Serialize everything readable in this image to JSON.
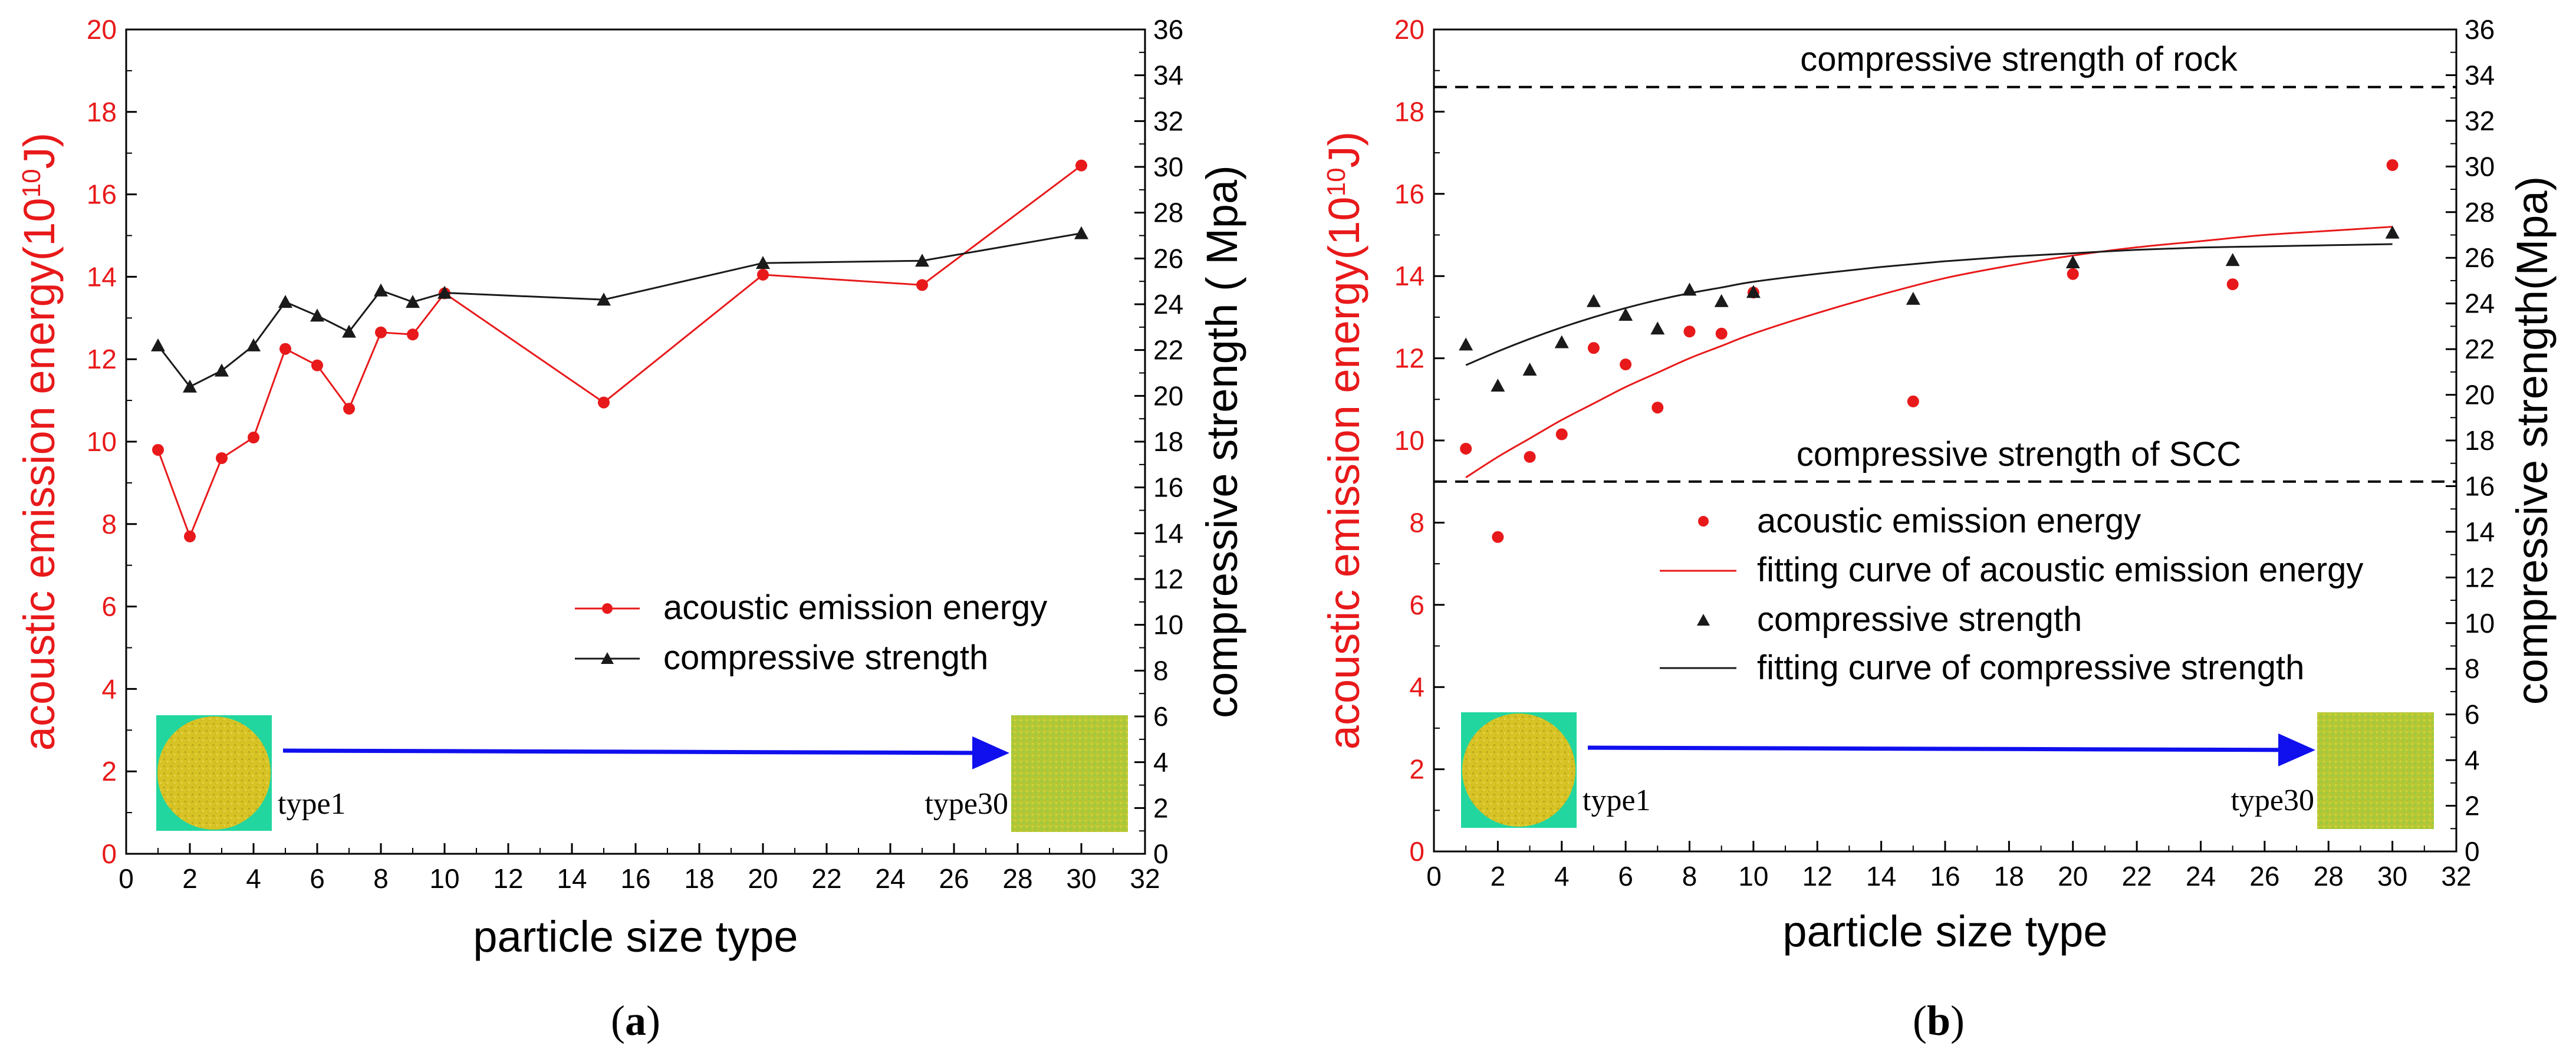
{
  "colors": {
    "energy": "#e8191a",
    "strength": "#1a1a1a",
    "arrow": "#1010ee",
    "tile_bg": "#22d6a0",
    "grain": "#d7c324",
    "fine": "#b4c836"
  },
  "panels": [
    {
      "caption_letter": "a",
      "image_labels": {
        "start": "type1",
        "end": "type30"
      },
      "legend": {
        "energy": "acoustic emission energy",
        "strength": "compressive strength"
      },
      "notes": []
    },
    {
      "caption_letter": "b",
      "image_labels": {
        "start": "type1",
        "end": "type30"
      },
      "legend": {
        "energy": "acoustic emission energy",
        "energy_fit": "fitting curve of acoustic emission energy",
        "strength": "compressive strength",
        "strength_fit": "fitting curve of compressive strength"
      },
      "notes": [
        "compressive strength of rock",
        "compressive strength of SCC"
      ]
    }
  ],
  "chart_data": [
    {
      "type": "line",
      "xlabel": "particle size type",
      "ylabel": "acoustic emission energy(10^10 J)",
      "y2label": "compressive strength ( Mpa)",
      "xlim": [
        0,
        32
      ],
      "ylim": [
        0,
        20
      ],
      "y2lim": [
        0,
        36
      ],
      "xticks": [
        0,
        2,
        4,
        6,
        8,
        10,
        12,
        14,
        16,
        18,
        20,
        22,
        24,
        26,
        28,
        30,
        32
      ],
      "yticks": [
        0,
        2,
        4,
        6,
        8,
        10,
        12,
        14,
        16,
        18,
        20
      ],
      "y2ticks": [
        0,
        2,
        4,
        6,
        8,
        10,
        12,
        14,
        16,
        18,
        20,
        22,
        24,
        26,
        28,
        30,
        32,
        34,
        36
      ],
      "series": [
        {
          "name": "acoustic emission energy",
          "axis": "left",
          "marker": "circle",
          "x": [
            1,
            2,
            3,
            4,
            5,
            6,
            7,
            8,
            9,
            10,
            15,
            20,
            25,
            30
          ],
          "values": [
            9.8,
            7.7,
            9.6,
            10.1,
            12.25,
            11.85,
            10.8,
            12.65,
            12.6,
            13.6,
            10.95,
            14.05,
            13.8,
            16.7
          ]
        },
        {
          "name": "compressive strength",
          "axis": "right",
          "marker": "triangle",
          "x": [
            1,
            2,
            3,
            4,
            5,
            6,
            7,
            8,
            9,
            10,
            15,
            20,
            25,
            30
          ],
          "values": [
            22.2,
            20.4,
            21.1,
            22.2,
            24.1,
            23.5,
            22.8,
            24.6,
            24.1,
            24.5,
            24.2,
            25.8,
            25.9,
            27.1
          ]
        }
      ]
    },
    {
      "type": "scatter",
      "xlabel": "particle size type",
      "ylabel": "acoustic emission energy(10^10 J)",
      "y2label": "compressive strength(Mpa)",
      "xlim": [
        0,
        32
      ],
      "ylim": [
        0,
        20
      ],
      "y2lim": [
        0,
        36
      ],
      "xticks": [
        0,
        2,
        4,
        6,
        8,
        10,
        12,
        14,
        16,
        18,
        20,
        22,
        24,
        26,
        28,
        30,
        32
      ],
      "yticks": [
        0,
        2,
        4,
        6,
        8,
        10,
        12,
        14,
        16,
        18,
        20
      ],
      "y2ticks": [
        0,
        2,
        4,
        6,
        8,
        10,
        12,
        14,
        16,
        18,
        20,
        22,
        24,
        26,
        28,
        30,
        32,
        34,
        36
      ],
      "series": [
        {
          "name": "acoustic emission energy",
          "axis": "left",
          "marker": "circle",
          "x": [
            1,
            2,
            3,
            4,
            5,
            6,
            7,
            8,
            9,
            10,
            15,
            20,
            25,
            30
          ],
          "values": [
            9.8,
            7.65,
            9.6,
            10.15,
            12.25,
            11.85,
            10.8,
            12.65,
            12.6,
            13.6,
            10.95,
            14.05,
            13.8,
            16.7
          ]
        },
        {
          "name": "fitting curve of acoustic emission energy",
          "axis": "left",
          "marker": "none",
          "x": [
            1,
            2,
            3,
            4,
            5,
            6,
            7,
            8,
            9,
            10,
            12,
            14,
            16,
            18,
            20,
            22,
            24,
            26,
            28,
            30
          ],
          "values": [
            9.1,
            9.6,
            10.05,
            10.5,
            10.9,
            11.3,
            11.65,
            12.0,
            12.3,
            12.6,
            13.1,
            13.55,
            13.95,
            14.25,
            14.5,
            14.7,
            14.85,
            15.0,
            15.1,
            15.2
          ]
        },
        {
          "name": "compressive strength",
          "axis": "right",
          "marker": "triangle",
          "x": [
            1,
            2,
            3,
            4,
            5,
            6,
            7,
            8,
            9,
            10,
            15,
            20,
            25,
            30
          ],
          "values": [
            22.2,
            20.4,
            21.1,
            22.3,
            24.1,
            23.5,
            22.9,
            24.6,
            24.1,
            24.5,
            24.2,
            25.8,
            25.9,
            27.1
          ]
        },
        {
          "name": "fitting curve of compressive strength",
          "axis": "right",
          "marker": "none",
          "x": [
            1,
            2,
            3,
            4,
            5,
            6,
            7,
            8,
            9,
            10,
            12,
            14,
            16,
            18,
            20,
            22,
            24,
            26,
            28,
            30
          ],
          "values": [
            21.3,
            21.9,
            22.45,
            22.95,
            23.4,
            23.8,
            24.15,
            24.45,
            24.7,
            24.95,
            25.3,
            25.6,
            25.85,
            26.05,
            26.2,
            26.35,
            26.45,
            26.5,
            26.55,
            26.6
          ]
        }
      ],
      "reference_lines": [
        {
          "label": "compressive strength of rock",
          "axis": "left",
          "value": 18.6
        },
        {
          "label": "compressive strength of SCC",
          "axis": "left",
          "value": 9.0
        }
      ]
    }
  ]
}
